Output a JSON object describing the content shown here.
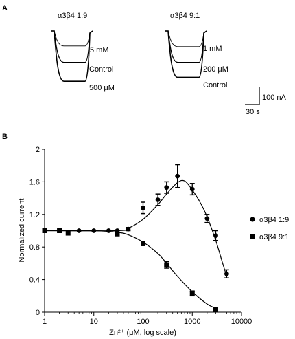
{
  "panel_a": {
    "label": "A",
    "left": {
      "title": "α3β4 1:9",
      "traces": [
        {
          "label": "5 mM",
          "depth": 0.23
        },
        {
          "label": "Control",
          "depth": 0.48
        },
        {
          "label": "500 μM",
          "depth": 0.77
        }
      ]
    },
    "right": {
      "title": "α3β4 9:1",
      "traces": [
        {
          "label": "1 mM",
          "depth": 0.24
        },
        {
          "label": "200 μM",
          "depth": 0.48
        },
        {
          "label": "Control",
          "depth": 0.71
        }
      ]
    },
    "scalebar": {
      "current": "100 nA",
      "time": "30 s"
    }
  },
  "panel_b": {
    "label": "B"
  },
  "chart_data": {
    "type": "scatter",
    "xlabel": "Zn²⁺ (μM, log scale)",
    "ylabel": "Normalized current",
    "xscale": "log",
    "xlim": [
      1,
      10000
    ],
    "ylim": [
      0,
      2
    ],
    "x_tick_labels": [
      "1",
      "10",
      "100",
      "1000",
      "10000"
    ],
    "y_tick_labels": [
      "0",
      "0.4",
      "0.8",
      "1.2",
      "1.6",
      "2"
    ],
    "y_ticks": [
      0,
      0.4,
      0.8,
      1.2,
      1.6,
      2
    ],
    "legend_position": "right",
    "series": [
      {
        "name": "α3β4 1:9",
        "marker": "circle",
        "x": [
          1,
          2,
          5,
          10,
          20,
          30,
          50,
          100,
          200,
          300,
          500,
          1000,
          2000,
          3000,
          5000
        ],
        "y": [
          1.0,
          1.0,
          1.0,
          1.0,
          1.0,
          1.0,
          1.02,
          1.28,
          1.38,
          1.53,
          1.67,
          1.51,
          1.15,
          0.94,
          0.47
        ],
        "err": [
          0,
          0,
          0,
          0,
          0,
          0,
          0.02,
          0.07,
          0.07,
          0.07,
          0.14,
          0.07,
          0.05,
          0.06,
          0.05
        ],
        "fit_x": [
          1,
          30,
          50,
          100,
          200,
          300,
          500,
          700,
          1000,
          1500,
          2000,
          3000,
          4000,
          5000
        ],
        "fit_y": [
          1.0,
          1.0,
          1.03,
          1.14,
          1.32,
          1.45,
          1.59,
          1.61,
          1.5,
          1.33,
          1.17,
          0.88,
          0.63,
          0.44
        ]
      },
      {
        "name": "α3β4 9:1",
        "marker": "square",
        "x": [
          1,
          2,
          3,
          30,
          100,
          300,
          1000,
          3000
        ],
        "y": [
          1.0,
          1.0,
          0.97,
          0.96,
          0.84,
          0.58,
          0.23,
          0.03
        ],
        "err": [
          0,
          0,
          0,
          0.02,
          0.02,
          0.04,
          0.03,
          0.01
        ],
        "fit_x": [
          1,
          10,
          30,
          50,
          100,
          200,
          300,
          500,
          1000,
          2000,
          3000
        ],
        "fit_y": [
          1.0,
          1.0,
          0.98,
          0.95,
          0.86,
          0.72,
          0.6,
          0.44,
          0.25,
          0.1,
          0.05
        ]
      }
    ]
  }
}
